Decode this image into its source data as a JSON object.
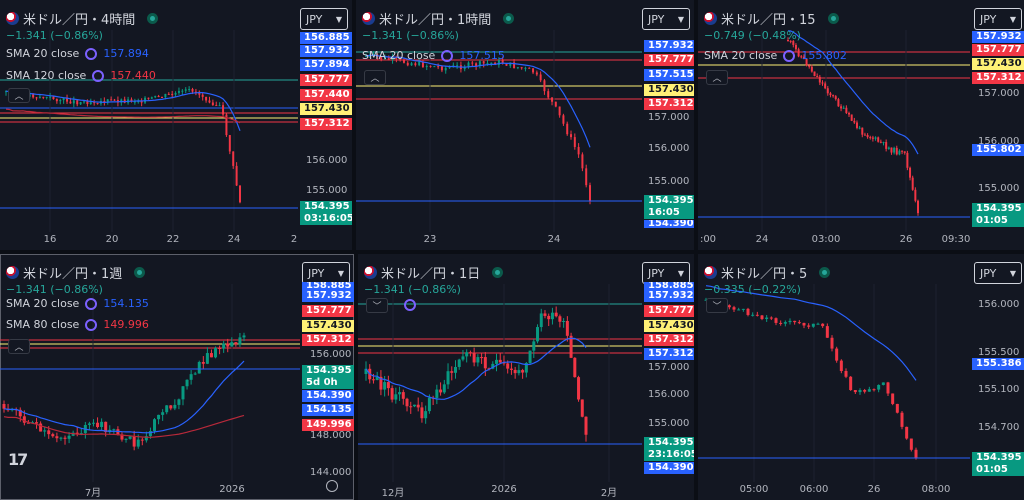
{
  "currency": "JPY",
  "panels": [
    {
      "id": "4h",
      "title": "米ドル／円・4時間",
      "change": "−1.341 (−0.86%)",
      "sma": [
        {
          "label": "SMA 20 close",
          "value": "157.894",
          "color": "#2962ff"
        },
        {
          "label": "SMA 120 close",
          "value": "157.440",
          "color": "#f23645"
        }
      ],
      "price_labels": [
        "156.000",
        "155.000"
      ],
      "time_labels": [
        "16",
        "20",
        "22",
        "24",
        "2"
      ],
      "tags": [
        {
          "text": "156.885",
          "color": "blue"
        },
        {
          "text": "157.932",
          "color": "blue"
        },
        {
          "text": "157.894",
          "color": "blue"
        },
        {
          "text": "157.777",
          "color": "red"
        },
        {
          "text": "157.440",
          "color": "red"
        },
        {
          "text": "157.430",
          "color": "yellow"
        },
        {
          "text": "157.312",
          "color": "red"
        }
      ],
      "current": {
        "price": "154.395",
        "countdown": "03:16:05"
      }
    },
    {
      "id": "1h",
      "title": "米ドル／円・1時間",
      "change": "−1.341 (−0.86%)",
      "sma": [
        {
          "label": "SMA 20 close",
          "value": "157.515",
          "color": "#2962ff"
        }
      ],
      "price_labels": [
        "157.000",
        "156.000",
        "155.000"
      ],
      "time_labels": [
        "23",
        "24"
      ],
      "tags": [
        {
          "text": "157.932",
          "color": "blue"
        },
        {
          "text": "157.777",
          "color": "red"
        },
        {
          "text": "157.515",
          "color": "blue"
        },
        {
          "text": "157.430",
          "color": "yellow"
        },
        {
          "text": "157.312",
          "color": "red"
        }
      ],
      "current": {
        "price": "154.395",
        "countdown": "16:05"
      },
      "extra_tag": "154.390"
    },
    {
      "id": "15m",
      "title": "米ドル／円・15",
      "change": "−0.749 (−0.48%)",
      "sma": [
        {
          "label": "SMA 20 close",
          "value": "155.802",
          "color": "#2962ff"
        }
      ],
      "price_labels": [
        "157.000",
        "156.000",
        "155.000"
      ],
      "time_labels": [
        ":00",
        "24",
        "03:00",
        "26",
        "09:30"
      ],
      "tags": [
        {
          "text": "157.932",
          "color": "blue"
        },
        {
          "text": "157.777",
          "color": "red"
        },
        {
          "text": "157.430",
          "color": "yellow"
        },
        {
          "text": "157.312",
          "color": "red"
        }
      ],
      "sma_tag": "155.802",
      "current": {
        "price": "154.395",
        "countdown": "01:05"
      }
    },
    {
      "id": "1w",
      "title": "米ドル／円・1週",
      "change": "−1.341 (−0.86%)",
      "sma": [
        {
          "label": "SMA 20 close",
          "value": "154.135",
          "color": "#2962ff"
        },
        {
          "label": "SMA 80 close",
          "value": "149.996",
          "color": "#f23645"
        }
      ],
      "price_labels": [
        "156.000",
        "148.000",
        "144.000"
      ],
      "time_labels": [
        "7月",
        "2026"
      ],
      "tags": [
        {
          "text": "158.885",
          "color": "blue"
        },
        {
          "text": "157.932",
          "color": "blue"
        },
        {
          "text": "157.777",
          "color": "red"
        },
        {
          "text": "157.430",
          "color": "yellow"
        },
        {
          "text": "157.312",
          "color": "red"
        }
      ],
      "current": {
        "price": "154.395",
        "countdown": "5d 0h"
      },
      "lower_tags": [
        {
          "text": "154.390",
          "color": "blue"
        },
        {
          "text": "154.135",
          "color": "blue"
        },
        {
          "text": "149.996",
          "color": "red"
        }
      ]
    },
    {
      "id": "1d",
      "title": "米ドル／円・1日",
      "change": "−1.341 (−0.86%)",
      "sma": [],
      "price_labels": [
        "157.000",
        "156.000",
        "155.000"
      ],
      "time_labels": [
        "12月",
        "2026",
        "2月"
      ],
      "tags": [
        {
          "text": "158.885",
          "color": "blue"
        },
        {
          "text": "157.932",
          "color": "blue"
        },
        {
          "text": "157.777",
          "color": "red"
        },
        {
          "text": "157.430",
          "color": "yellow"
        },
        {
          "text": "157.312",
          "color": "red"
        },
        {
          "text": "157.312",
          "color": "blue"
        }
      ],
      "current": {
        "price": "154.395",
        "countdown": "23:16:05"
      },
      "extra_tag": "154.390"
    },
    {
      "id": "5m",
      "title": "米ドル／円・5",
      "change": "−0.335 (−0.22%)",
      "sma": [],
      "price_labels": [
        "156.000",
        "155.500",
        "155.100",
        "154.700"
      ],
      "time_labels": [
        "05:00",
        "06:00",
        "26",
        "08:00"
      ],
      "tags": [],
      "sma_tag": "155.386",
      "current": {
        "price": "154.395",
        "countdown": "01:05"
      }
    }
  ]
}
